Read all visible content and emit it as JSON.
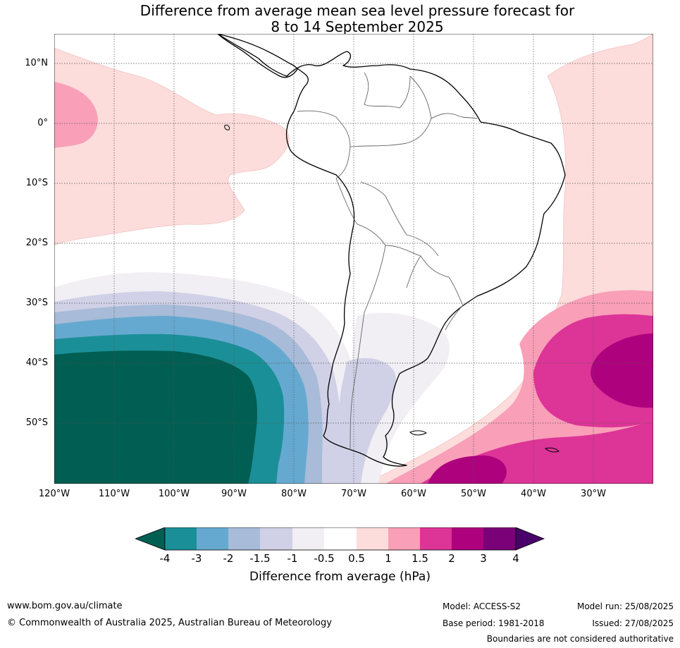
{
  "title": {
    "line1": "Difference from average mean sea level pressure forecast for",
    "line2": "8 to 14 September 2025"
  },
  "map": {
    "lat_labels": [
      "10°N",
      "0°",
      "10°S",
      "20°S",
      "30°S",
      "40°S",
      "50°S"
    ],
    "lon_labels": [
      "120°W",
      "110°W",
      "100°W",
      "90°W",
      "80°W",
      "70°W",
      "60°W",
      "50°W",
      "40°W",
      "30°W"
    ]
  },
  "colorbar": {
    "title": "Difference from average (hPa)",
    "tick_labels": [
      "-4",
      "-3",
      "-2",
      "-1.5",
      "-1",
      "-0.5",
      "0.5",
      "1",
      "1.5",
      "2",
      "3",
      "4"
    ],
    "colors": {
      "lt_m4": "#005e52",
      "m4_m3": "#1b8f97",
      "m3_m2": "#66a9d0",
      "m2_m15": "#a8bbd8",
      "m15_m1": "#d0d1e6",
      "m1_m05": "#f1eef4",
      "m05_05": "#ffffff",
      "p05_1": "#fddcdc",
      "p1_15": "#f99fb8",
      "p15_2": "#dd3497",
      "p2_3": "#ae017e",
      "p3_4": "#7a0177",
      "gt_4": "#49006a"
    }
  },
  "footer": {
    "url": "www.bom.gov.au/climate",
    "copyright": "© Commonwealth of Australia 2025, Australian Bureau of Meteorology",
    "model": "Model: ACCESS-S2",
    "base_period": "Base period: 1981-2018",
    "model_run": "Model run: 25/08/2025",
    "issued": "Issued: 27/08/2025",
    "disclaimer": "Boundaries are not considered authoritative"
  }
}
